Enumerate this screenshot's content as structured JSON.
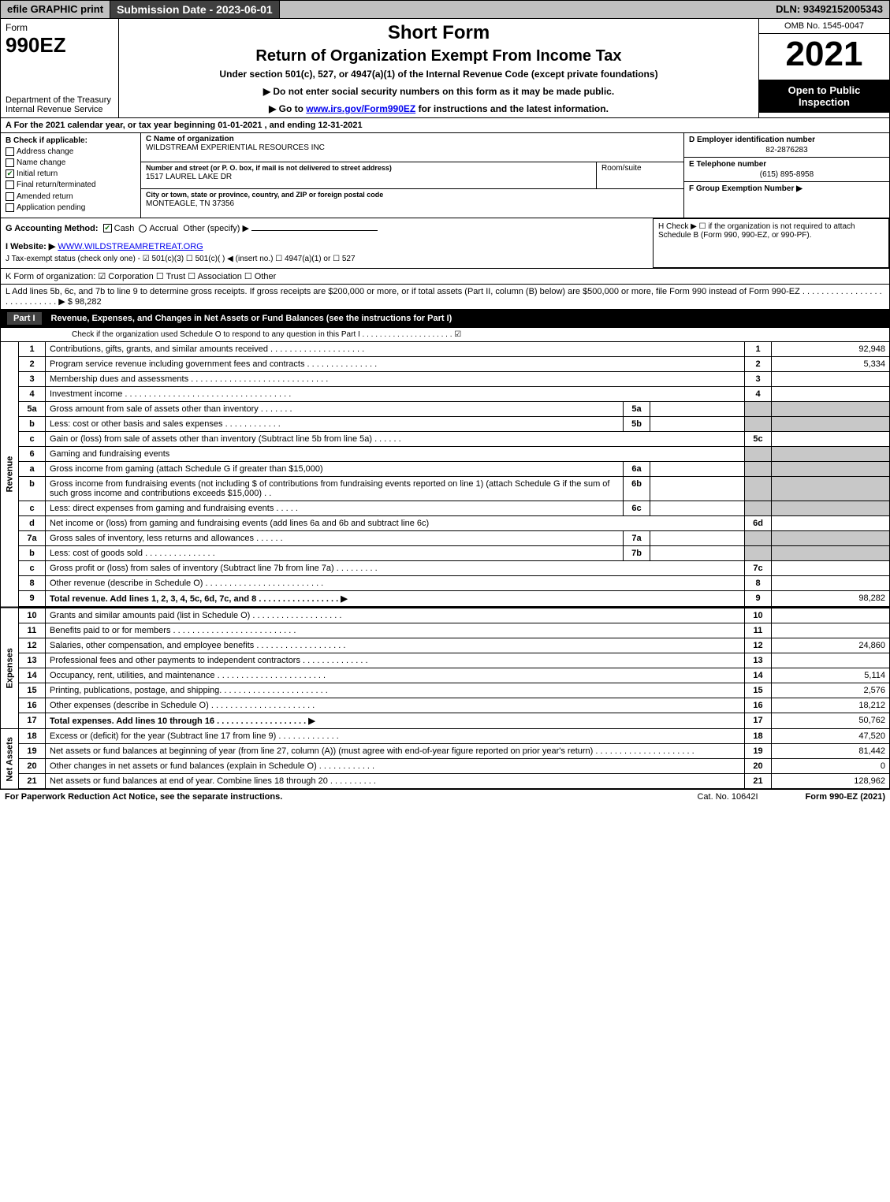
{
  "topbar": {
    "efile": "efile GRAPHIC print",
    "submission": "Submission Date - 2023-06-01",
    "dln": "DLN: 93492152005343"
  },
  "header": {
    "form_word": "Form",
    "form_number": "990EZ",
    "dept": "Department of the Treasury\nInternal Revenue Service",
    "short_form": "Short Form",
    "title": "Return of Organization Exempt From Income Tax",
    "subtitle": "Under section 501(c), 527, or 4947(a)(1) of the Internal Revenue Code (except private foundations)",
    "note1": "▶ Do not enter social security numbers on this form as it may be made public.",
    "note2_pre": "▶ Go to ",
    "note2_link": "www.irs.gov/Form990EZ",
    "note2_post": " for instructions and the latest information.",
    "omb": "OMB No. 1545-0047",
    "year": "2021",
    "inspection": "Open to Public Inspection"
  },
  "sectionA": "A  For the 2021 calendar year, or tax year beginning 01-01-2021 , and ending 12-31-2021",
  "sectionB": {
    "label": "B  Check if applicable:",
    "options": [
      "Address change",
      "Name change",
      "Initial return",
      "Final return/terminated",
      "Amended return",
      "Application pending"
    ],
    "checked_index": 2
  },
  "sectionC": {
    "name_label": "C Name of organization",
    "name": "WILDSTREAM EXPERIENTIAL RESOURCES INC",
    "addr_label": "Number and street (or P. O. box, if mail is not delivered to street address)",
    "addr": "1517 LAUREL LAKE DR",
    "room_label": "Room/suite",
    "city_label": "City or town, state or province, country, and ZIP or foreign postal code",
    "city": "MONTEAGLE, TN  37356"
  },
  "sectionD": {
    "label": "D Employer identification number",
    "value": "82-2876283"
  },
  "sectionE": {
    "label": "E Telephone number",
    "value": "(615) 895-8958"
  },
  "sectionF": {
    "label": "F Group Exemption Number  ▶"
  },
  "sectionG": {
    "label": "G Accounting Method:",
    "cash": "Cash",
    "accrual": "Accrual",
    "other": "Other (specify) ▶"
  },
  "sectionH": {
    "text": "H  Check ▶  ☐  if the organization is not required to attach Schedule B (Form 990, 990-EZ, or 990-PF)."
  },
  "sectionI": {
    "label": "I Website: ▶",
    "link": "WWW.WILDSTREAMRETREAT.ORG"
  },
  "sectionJ": {
    "text": "J Tax-exempt status (check only one) -  ☑ 501(c)(3)  ☐ 501(c)(  ) ◀ (insert no.)  ☐ 4947(a)(1) or  ☐ 527"
  },
  "sectionK": {
    "text": "K Form of organization:   ☑ Corporation   ☐ Trust   ☐ Association   ☐ Other"
  },
  "sectionL": {
    "text": "L Add lines 5b, 6c, and 7b to line 9 to determine gross receipts. If gross receipts are $200,000 or more, or if total assets (Part II, column (B) below) are $500,000 or more, file Form 990 instead of Form 990-EZ  .  .  .  .  .  .  .  .  .  .  .  .  .  .  .  .  .  .  .  .  .  .  .  .  .  .  .  .  ▶ $ 98,282"
  },
  "part1": {
    "badge": "Part I",
    "title": "Revenue, Expenses, and Changes in Net Assets or Fund Balances (see the instructions for Part I)",
    "check_text": "Check if the organization used Schedule O to respond to any question in this Part I  .  .  .  .  .  .  .  .  .  .  .  .  .  .  .  .  .  .  .  .  .  ☑"
  },
  "sections": {
    "revenue_label": "Revenue",
    "expenses_label": "Expenses",
    "netassets_label": "Net Assets"
  },
  "lines": [
    {
      "n": "1",
      "num": "1",
      "desc": "Contributions, gifts, grants, and similar amounts received  .  .  .  .  .  .  .  .  .  .  .  .  .  .  .  .  .  .  .  .",
      "ref": "1",
      "val": "92,948"
    },
    {
      "n": "2",
      "num": "2",
      "desc": "Program service revenue including government fees and contracts  .  .  .  .  .  .  .  .  .  .  .  .  .  .  .",
      "ref": "2",
      "val": "5,334"
    },
    {
      "n": "3",
      "num": "3",
      "desc": "Membership dues and assessments  .  .  .  .  .  .  .  .  .  .  .  .  .  .  .  .  .  .  .  .  .  .  .  .  .  .  .  .  .",
      "ref": "3",
      "val": ""
    },
    {
      "n": "4",
      "num": "4",
      "desc": "Investment income  .  .  .  .  .  .  .  .  .  .  .  .  .  .  .  .  .  .  .  .  .  .  .  .  .  .  .  .  .  .  .  .  .  .  .",
      "ref": "4",
      "val": ""
    },
    {
      "n": "5a",
      "num": "5a",
      "desc": "Gross amount from sale of assets other than inventory  .  .  .  .  .  .  .",
      "sub": "5a",
      "subval": "",
      "shade_ref": true
    },
    {
      "n": "5b",
      "num": "b",
      "desc": "Less: cost or other basis and sales expenses  .  .  .  .  .  .  .  .  .  .  .  .",
      "sub": "5b",
      "subval": "",
      "shade_ref": true
    },
    {
      "n": "5c",
      "num": "c",
      "desc": "Gain or (loss) from sale of assets other than inventory (Subtract line 5b from line 5a)  .  .  .  .  .  .",
      "ref": "5c",
      "val": ""
    },
    {
      "n": "6",
      "num": "6",
      "desc": "Gaming and fundraising events",
      "shade_ref": true,
      "noref": true
    },
    {
      "n": "6a",
      "num": "a",
      "desc": "Gross income from gaming (attach Schedule G if greater than $15,000)",
      "sub": "6a",
      "subval": "",
      "shade_ref": true
    },
    {
      "n": "6b",
      "num": "b",
      "desc": "Gross income from fundraising events (not including $                       of contributions from fundraising events reported on line 1) (attach Schedule G if the sum of such gross income and contributions exceeds $15,000)    .   .",
      "sub": "6b",
      "subval": "",
      "shade_ref": true
    },
    {
      "n": "6c",
      "num": "c",
      "desc": "Less: direct expenses from gaming and fundraising events   .  .  .  .  .",
      "sub": "6c",
      "subval": "",
      "shade_ref": true
    },
    {
      "n": "6d",
      "num": "d",
      "desc": "Net income or (loss) from gaming and fundraising events (add lines 6a and 6b and subtract line 6c)",
      "ref": "6d",
      "val": ""
    },
    {
      "n": "7a",
      "num": "7a",
      "desc": "Gross sales of inventory, less returns and allowances  .  .  .  .  .  .",
      "sub": "7a",
      "subval": "",
      "shade_ref": true
    },
    {
      "n": "7b",
      "num": "b",
      "desc": "Less: cost of goods sold         .  .  .  .  .  .  .  .  .  .  .  .  .  .  .",
      "sub": "7b",
      "subval": "",
      "shade_ref": true
    },
    {
      "n": "7c",
      "num": "c",
      "desc": "Gross profit or (loss) from sales of inventory (Subtract line 7b from line 7a)  .  .  .  .  .  .  .  .  .",
      "ref": "7c",
      "val": ""
    },
    {
      "n": "8",
      "num": "8",
      "desc": "Other revenue (describe in Schedule O)  .  .  .  .  .  .  .  .  .  .  .  .  .  .  .  .  .  .  .  .  .  .  .  .  .",
      "ref": "8",
      "val": ""
    },
    {
      "n": "9",
      "num": "9",
      "desc": "Total revenue. Add lines 1, 2, 3, 4, 5c, 6d, 7c, and 8   .  .  .  .  .  .  .  .  .  .  .  .  .  .  .  .  .  ▶",
      "ref": "9",
      "val": "98,282",
      "bold": true
    }
  ],
  "exp_lines": [
    {
      "num": "10",
      "desc": "Grants and similar amounts paid (list in Schedule O)  .  .  .  .  .  .  .  .  .  .  .  .  .  .  .  .  .  .  .",
      "ref": "10",
      "val": ""
    },
    {
      "num": "11",
      "desc": "Benefits paid to or for members       .  .  .  .  .  .  .  .  .  .  .  .  .  .  .  .  .  .  .  .  .  .  .  .  .  .",
      "ref": "11",
      "val": ""
    },
    {
      "num": "12",
      "desc": "Salaries, other compensation, and employee benefits  .  .  .  .  .  .  .  .  .  .  .  .  .  .  .  .  .  .  .",
      "ref": "12",
      "val": "24,860"
    },
    {
      "num": "13",
      "desc": "Professional fees and other payments to independent contractors  .  .  .  .  .  .  .  .  .  .  .  .  .  .",
      "ref": "13",
      "val": ""
    },
    {
      "num": "14",
      "desc": "Occupancy, rent, utilities, and maintenance  .  .  .  .  .  .  .  .  .  .  .  .  .  .  .  .  .  .  .  .  .  .  .",
      "ref": "14",
      "val": "5,114"
    },
    {
      "num": "15",
      "desc": "Printing, publications, postage, and shipping.  .  .  .  .  .  .  .  .  .  .  .  .  .  .  .  .  .  .  .  .  .  .",
      "ref": "15",
      "val": "2,576"
    },
    {
      "num": "16",
      "desc": "Other expenses (describe in Schedule O)      .  .  .  .  .  .  .  .  .  .  .  .  .  .  .  .  .  .  .  .  .  .",
      "ref": "16",
      "val": "18,212"
    },
    {
      "num": "17",
      "desc": "Total expenses. Add lines 10 through 16     .  .  .  .  .  .  .  .  .  .  .  .  .  .  .  .  .  .  .  ▶",
      "ref": "17",
      "val": "50,762",
      "bold": true
    }
  ],
  "na_lines": [
    {
      "num": "18",
      "desc": "Excess or (deficit) for the year (Subtract line 17 from line 9)        .  .  .  .  .  .  .  .  .  .  .  .  .",
      "ref": "18",
      "val": "47,520"
    },
    {
      "num": "19",
      "desc": "Net assets or fund balances at beginning of year (from line 27, column (A)) (must agree with end-of-year figure reported on prior year's return)  .  .  .  .  .  .  .  .  .  .  .  .  .  .  .  .  .  .  .  .  .",
      "ref": "19",
      "val": "81,442"
    },
    {
      "num": "20",
      "desc": "Other changes in net assets or fund balances (explain in Schedule O)  .  .  .  .  .  .  .  .  .  .  .  .",
      "ref": "20",
      "val": "0"
    },
    {
      "num": "21",
      "desc": "Net assets or fund balances at end of year. Combine lines 18 through 20  .  .  .  .  .  .  .  .  .  .",
      "ref": "21",
      "val": "128,962"
    }
  ],
  "footer": {
    "left": "For Paperwork Reduction Act Notice, see the separate instructions.",
    "cat": "Cat. No. 10642I",
    "right": "Form 990-EZ (2021)"
  }
}
